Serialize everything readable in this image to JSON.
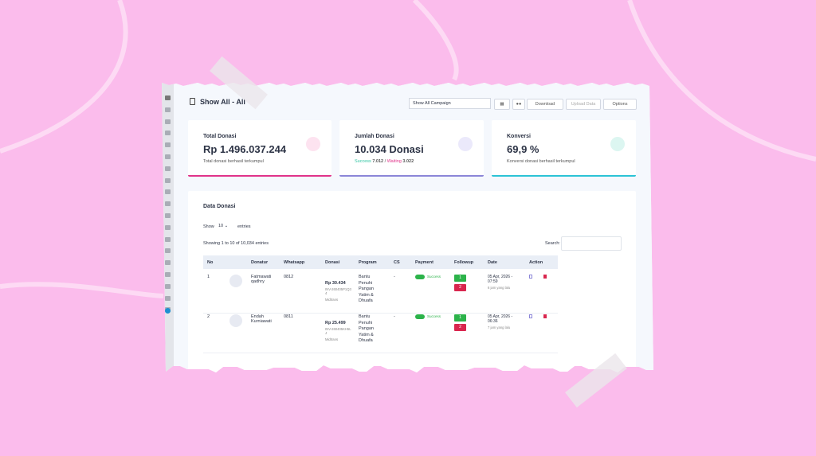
{
  "header": {
    "title": "Show All - All",
    "campaign_select": "Show All Campaign",
    "buttons": [
      "Download",
      "Upload Data",
      "Options"
    ]
  },
  "cards": [
    {
      "title": "Total Donasi",
      "value": "Rp 1.496.037.244",
      "caption": "Total donasi berhasil terkumpul"
    },
    {
      "title": "Jumlah Donasi",
      "value": "10.034 Donasi",
      "success_label": "Success",
      "success_count": "7.012",
      "separator": "/",
      "waiting_label": "Waiting",
      "waiting_count": "3.022"
    },
    {
      "title": "Konversi",
      "value": "69,9 %",
      "caption": "Konversi donasi berhasil terkumpul"
    }
  ],
  "table_section": {
    "title": "Data Donasi",
    "length_prefix": "Show",
    "length_value": "10",
    "length_suffix": "entries",
    "info": "Showing 1 to 10 of 10,034 entries",
    "search_label": "Search:",
    "columns": [
      "No",
      "Donatur",
      "Whatsapp",
      "Donasi",
      "Program",
      "CS",
      "Payment",
      "Followup",
      "Date",
      "Action"
    ],
    "rows": [
      {
        "no": "1",
        "donatur": "Fatmawati qadhry",
        "whatsapp": "0812",
        "amount": "Rp 30.434",
        "invoice": "INV-260405P1Q34",
        "method": "Midtrans",
        "program": "Bantu Penuhi Pangan Yatim & Dhuafa",
        "cs": "-",
        "payment": "Success",
        "followup_wa": "1",
        "followup_sms": "2",
        "date": "05 Apr, 2026 - 07:59",
        "ago": "6 jam yang lalu"
      },
      {
        "no": "2",
        "donatur": "Endah Kurniawati",
        "whatsapp": "0811",
        "amount": "Rp 25.499",
        "invoice": "INV-260405KH5LJ",
        "method": "Midtrans",
        "program": "Bantu Penuhi Pangan Yatim & Dhuafa",
        "cs": "-",
        "payment": "Success",
        "followup_wa": "1",
        "followup_sms": "2",
        "date": "05 Apr, 2026 - 06:36",
        "ago": "7 jam yang lalu"
      }
    ]
  }
}
